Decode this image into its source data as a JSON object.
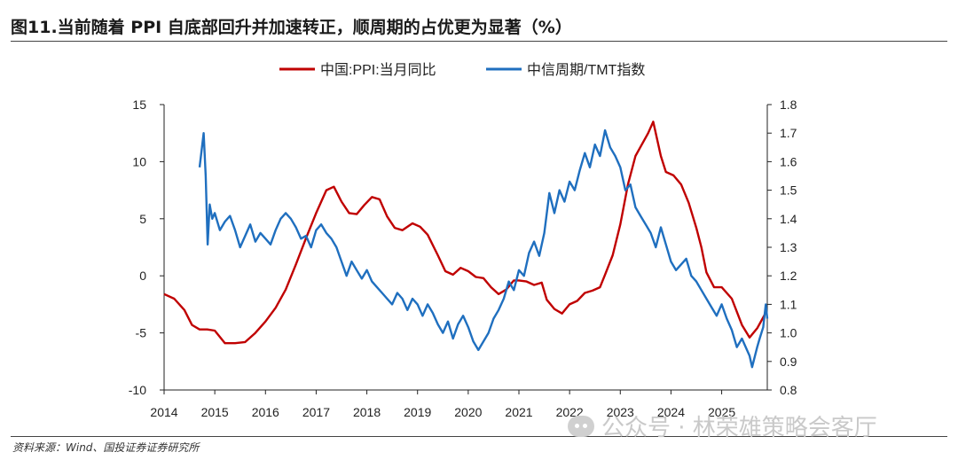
{
  "header": {
    "title": "图11.当前随着 PPI 自底部回升并加速转正，顺周期的占优更为显著（%）"
  },
  "footer": {
    "source": "资料来源：Wind、国投证券证券研究所"
  },
  "watermark": {
    "text": "公众号 · 林荣雄策略会客厅",
    "icon": "wechat-icon"
  },
  "chart_data": {
    "type": "line",
    "legend_position": "top",
    "grid": false,
    "x_ticks": [
      "2014",
      "2015",
      "2016",
      "2017",
      "2018",
      "2019",
      "2020",
      "2021",
      "2022",
      "2023",
      "2024",
      "2025"
    ],
    "xlim": [
      2014.0,
      2025.9
    ],
    "y_left": {
      "lim": [
        -10,
        15
      ],
      "ticks": [
        -10,
        -5,
        0,
        5,
        10,
        15
      ]
    },
    "y_right": {
      "lim": [
        0.8,
        1.8
      ],
      "ticks": [
        "0.8",
        "0.9",
        "1.0",
        "1.1",
        "1.2",
        "1.3",
        "1.4",
        "1.5",
        "1.6",
        "1.7",
        "1.8"
      ]
    },
    "series": [
      {
        "name": "中国:PPI:当月同比",
        "axis": "left",
        "color": "#c00000",
        "points": [
          [
            2014.0,
            -1.6
          ],
          [
            2014.2,
            -2.0
          ],
          [
            2014.4,
            -3.0
          ],
          [
            2014.55,
            -4.3
          ],
          [
            2014.7,
            -4.7
          ],
          [
            2014.85,
            -4.7
          ],
          [
            2015.0,
            -4.8
          ],
          [
            2015.2,
            -5.9
          ],
          [
            2015.4,
            -5.9
          ],
          [
            2015.6,
            -5.8
          ],
          [
            2015.8,
            -5.0
          ],
          [
            2016.0,
            -4.0
          ],
          [
            2016.2,
            -2.8
          ],
          [
            2016.4,
            -1.2
          ],
          [
            2016.6,
            1.0
          ],
          [
            2016.8,
            3.3
          ],
          [
            2017.0,
            5.5
          ],
          [
            2017.2,
            7.5
          ],
          [
            2017.35,
            7.8
          ],
          [
            2017.5,
            6.5
          ],
          [
            2017.65,
            5.5
          ],
          [
            2017.8,
            5.4
          ],
          [
            2017.95,
            6.2
          ],
          [
            2018.1,
            6.9
          ],
          [
            2018.25,
            6.7
          ],
          [
            2018.4,
            5.2
          ],
          [
            2018.55,
            4.2
          ],
          [
            2018.7,
            4.0
          ],
          [
            2018.9,
            4.6
          ],
          [
            2019.05,
            4.3
          ],
          [
            2019.2,
            3.6
          ],
          [
            2019.4,
            1.8
          ],
          [
            2019.55,
            0.4
          ],
          [
            2019.7,
            0.1
          ],
          [
            2019.85,
            0.7
          ],
          [
            2020.0,
            0.4
          ],
          [
            2020.15,
            -0.1
          ],
          [
            2020.3,
            -0.2
          ],
          [
            2020.45,
            -1.0
          ],
          [
            2020.6,
            -1.6
          ],
          [
            2020.75,
            -1.2
          ],
          [
            2020.9,
            -0.4
          ],
          [
            2021.0,
            -0.4
          ],
          [
            2021.15,
            -0.5
          ],
          [
            2021.3,
            -0.8
          ],
          [
            2021.45,
            -0.6
          ],
          [
            2021.55,
            -2.1
          ],
          [
            2021.7,
            -2.9
          ],
          [
            2021.85,
            -3.3
          ],
          [
            2022.0,
            -2.5
          ],
          [
            2022.15,
            -2.2
          ],
          [
            2022.3,
            -1.5
          ],
          [
            2022.45,
            -1.3
          ],
          [
            2022.6,
            -1.0
          ],
          [
            2022.7,
            0.1
          ],
          [
            2022.85,
            1.8
          ],
          [
            2023.0,
            4.5
          ],
          [
            2023.15,
            8.0
          ],
          [
            2023.3,
            10.5
          ],
          [
            2023.4,
            11.3
          ],
          [
            2023.55,
            12.5
          ],
          [
            2023.65,
            13.5
          ],
          [
            2023.8,
            10.5
          ],
          [
            2023.9,
            9.1
          ],
          [
            2024.05,
            8.8
          ],
          [
            2024.2,
            8.0
          ],
          [
            2024.35,
            6.4
          ],
          [
            2024.5,
            4.2
          ],
          [
            2024.6,
            2.5
          ],
          [
            2024.7,
            0.3
          ],
          [
            2024.85,
            -1.0
          ],
          [
            2025.0,
            -1.0
          ],
          [
            2025.2,
            -2.0
          ],
          [
            2025.4,
            -4.3
          ],
          [
            2025.55,
            -5.4
          ],
          [
            2025.7,
            -4.6
          ],
          [
            2025.85,
            -3.4
          ]
        ]
      },
      {
        "name": "中信周期/TMT指数",
        "axis": "right",
        "color": "#1f6fbf",
        "points": [
          [
            2014.7,
            1.58
          ],
          [
            2014.78,
            1.7
          ],
          [
            2014.82,
            1.55
          ],
          [
            2014.86,
            1.31
          ],
          [
            2014.9,
            1.45
          ],
          [
            2014.95,
            1.4
          ],
          [
            2015.0,
            1.42
          ],
          [
            2015.1,
            1.36
          ],
          [
            2015.2,
            1.39
          ],
          [
            2015.3,
            1.41
          ],
          [
            2015.4,
            1.36
          ],
          [
            2015.5,
            1.3
          ],
          [
            2015.6,
            1.34
          ],
          [
            2015.7,
            1.38
          ],
          [
            2015.8,
            1.32
          ],
          [
            2015.9,
            1.35
          ],
          [
            2016.0,
            1.33
          ],
          [
            2016.1,
            1.31
          ],
          [
            2016.2,
            1.36
          ],
          [
            2016.3,
            1.4
          ],
          [
            2016.4,
            1.42
          ],
          [
            2016.5,
            1.4
          ],
          [
            2016.6,
            1.37
          ],
          [
            2016.7,
            1.33
          ],
          [
            2016.8,
            1.34
          ],
          [
            2016.9,
            1.3
          ],
          [
            2017.0,
            1.36
          ],
          [
            2017.1,
            1.38
          ],
          [
            2017.2,
            1.35
          ],
          [
            2017.3,
            1.33
          ],
          [
            2017.4,
            1.3
          ],
          [
            2017.5,
            1.25
          ],
          [
            2017.6,
            1.2
          ],
          [
            2017.7,
            1.25
          ],
          [
            2017.8,
            1.22
          ],
          [
            2017.9,
            1.19
          ],
          [
            2018.0,
            1.22
          ],
          [
            2018.1,
            1.18
          ],
          [
            2018.2,
            1.16
          ],
          [
            2018.3,
            1.14
          ],
          [
            2018.4,
            1.12
          ],
          [
            2018.5,
            1.1
          ],
          [
            2018.6,
            1.14
          ],
          [
            2018.7,
            1.12
          ],
          [
            2018.8,
            1.08
          ],
          [
            2018.9,
            1.12
          ],
          [
            2019.0,
            1.1
          ],
          [
            2019.1,
            1.06
          ],
          [
            2019.2,
            1.1
          ],
          [
            2019.3,
            1.07
          ],
          [
            2019.4,
            1.03
          ],
          [
            2019.5,
            1.0
          ],
          [
            2019.6,
            1.04
          ],
          [
            2019.7,
            0.98
          ],
          [
            2019.8,
            1.03
          ],
          [
            2019.9,
            1.06
          ],
          [
            2020.0,
            1.02
          ],
          [
            2020.1,
            0.97
          ],
          [
            2020.2,
            0.94
          ],
          [
            2020.3,
            0.97
          ],
          [
            2020.4,
            1.0
          ],
          [
            2020.5,
            1.05
          ],
          [
            2020.6,
            1.08
          ],
          [
            2020.7,
            1.12
          ],
          [
            2020.8,
            1.18
          ],
          [
            2020.9,
            1.15
          ],
          [
            2021.0,
            1.22
          ],
          [
            2021.1,
            1.2
          ],
          [
            2021.2,
            1.28
          ],
          [
            2021.3,
            1.32
          ],
          [
            2021.4,
            1.27
          ],
          [
            2021.5,
            1.35
          ],
          [
            2021.6,
            1.49
          ],
          [
            2021.7,
            1.42
          ],
          [
            2021.8,
            1.5
          ],
          [
            2021.9,
            1.46
          ],
          [
            2022.0,
            1.53
          ],
          [
            2022.1,
            1.5
          ],
          [
            2022.2,
            1.57
          ],
          [
            2022.3,
            1.63
          ],
          [
            2022.4,
            1.58
          ],
          [
            2022.5,
            1.66
          ],
          [
            2022.6,
            1.62
          ],
          [
            2022.7,
            1.71
          ],
          [
            2022.8,
            1.65
          ],
          [
            2022.9,
            1.62
          ],
          [
            2023.0,
            1.58
          ],
          [
            2023.1,
            1.5
          ],
          [
            2023.2,
            1.52
          ],
          [
            2023.3,
            1.44
          ],
          [
            2023.4,
            1.41
          ],
          [
            2023.5,
            1.38
          ],
          [
            2023.6,
            1.35
          ],
          [
            2023.7,
            1.3
          ],
          [
            2023.8,
            1.37
          ],
          [
            2023.9,
            1.31
          ],
          [
            2024.0,
            1.25
          ],
          [
            2024.1,
            1.22
          ],
          [
            2024.2,
            1.24
          ],
          [
            2024.3,
            1.26
          ],
          [
            2024.4,
            1.2
          ],
          [
            2024.5,
            1.18
          ],
          [
            2024.6,
            1.15
          ],
          [
            2024.7,
            1.12
          ],
          [
            2024.8,
            1.09
          ],
          [
            2024.9,
            1.06
          ],
          [
            2025.0,
            1.1
          ],
          [
            2025.1,
            1.05
          ],
          [
            2025.2,
            1.01
          ],
          [
            2025.3,
            0.95
          ],
          [
            2025.4,
            0.98
          ],
          [
            2025.5,
            0.94
          ],
          [
            2025.55,
            0.92
          ],
          [
            2025.6,
            0.88
          ],
          [
            2025.7,
            0.95
          ],
          [
            2025.75,
            0.98
          ],
          [
            2025.82,
            1.02
          ],
          [
            2025.87,
            1.1
          ],
          [
            2025.9,
            1.05
          ]
        ]
      }
    ]
  }
}
